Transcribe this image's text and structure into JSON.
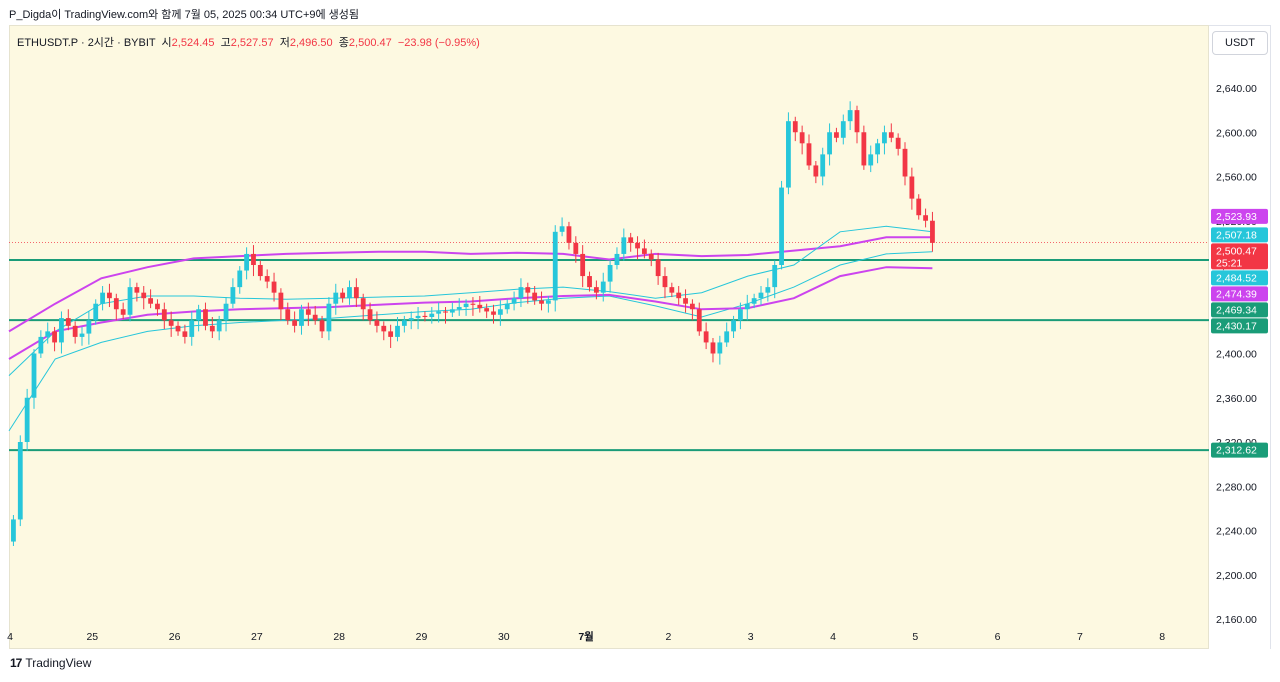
{
  "header": {
    "credit": "P_Digda이 TradingView.com와 함께 7월 05, 2025 00:34 UTC+9에 생성됨"
  },
  "legend": {
    "symbol": "ETHUSDT.P · 2시간 · BYBIT",
    "open_label": "시",
    "open": "2,524.45",
    "high_label": "고",
    "high": "2,527.57",
    "low_label": "저",
    "low": "2,496.50",
    "close_label": "종",
    "close": "2,500.47",
    "change": "−23.98 (−0.95%)"
  },
  "currency_button": "USDT",
  "brand": {
    "logo": "17",
    "name": "TradingView"
  },
  "colors": {
    "up": "#26c6da",
    "down": "#f23645",
    "upper_band": "#cc44ee",
    "inner_band": "#26c6da",
    "hline": "#1a9c78",
    "background": "#fdf9e1"
  },
  "chart_data": {
    "type": "candlestick",
    "ylim": [
      2160,
      2660
    ],
    "y_ticks": [
      "2,160.00",
      "2,200.00",
      "2,240.00",
      "2,280.00",
      "2,320.00",
      "2,360.00",
      "2,400.00",
      "2,440.00",
      "2,480.00",
      "2,520.00",
      "2,560.00",
      "2,600.00",
      "2,640.00"
    ],
    "x_ticks": [
      {
        "label": "4",
        "pos": 0
      },
      {
        "label": "25",
        "pos": 1
      },
      {
        "label": "26",
        "pos": 2
      },
      {
        "label": "27",
        "pos": 3
      },
      {
        "label": "28",
        "pos": 4
      },
      {
        "label": "29",
        "pos": 5
      },
      {
        "label": "30",
        "pos": 6
      },
      {
        "label": "7월",
        "pos": 7,
        "bold": true
      },
      {
        "label": "2",
        "pos": 8
      },
      {
        "label": "3",
        "pos": 9
      },
      {
        "label": "4",
        "pos": 10
      },
      {
        "label": "5",
        "pos": 11
      },
      {
        "label": "6",
        "pos": 12
      },
      {
        "label": "7",
        "pos": 13
      },
      {
        "label": "8",
        "pos": 14
      }
    ],
    "bars_per_day": 12,
    "horizontal_lines": [
      2484.52,
      2430.17,
      2312.62
    ],
    "current_price": 2500.47,
    "countdown": "25:21",
    "price_labels": [
      {
        "text": "2,523.93",
        "value": 2523.93,
        "color": "#cc44ee"
      },
      {
        "text": "2,507.18",
        "value": 2507.18,
        "color": "#26c6da"
      },
      {
        "text": "2,500.47",
        "value": 2500.47,
        "color": "#f23645"
      },
      {
        "text": "2,484.52",
        "value": 2484.52,
        "color": "#26c6da"
      },
      {
        "text": "2,474.39",
        "value": 2474.39,
        "color": "#cc44ee"
      },
      {
        "text": "2,469.34",
        "value": 2469.34,
        "color": "#1a9c78"
      },
      {
        "text": "2,430.17",
        "value": 2430.17,
        "color": "#1a9c78"
      },
      {
        "text": "2,312.62",
        "value": 2312.62,
        "color": "#1a9c78"
      }
    ],
    "closes": [
      2250,
      2320,
      2360,
      2400,
      2415,
      2420,
      2410,
      2432,
      2425,
      2415,
      2418,
      2430,
      2445,
      2455,
      2450,
      2440,
      2435,
      2460,
      2455,
      2450,
      2445,
      2440,
      2430,
      2425,
      2420,
      2415,
      2430,
      2440,
      2425,
      2420,
      2430,
      2445,
      2460,
      2475,
      2490,
      2480,
      2470,
      2465,
      2455,
      2440,
      2430,
      2425,
      2440,
      2435,
      2430,
      2420,
      2445,
      2455,
      2450,
      2460,
      2450,
      2440,
      2430,
      2425,
      2420,
      2415,
      2425,
      2430,
      2432,
      2434,
      2433,
      2436,
      2438,
      2437,
      2440,
      2442,
      2445,
      2444,
      2441,
      2438,
      2435,
      2440,
      2445,
      2450,
      2460,
      2455,
      2448,
      2445,
      2448,
      2510,
      2515,
      2500,
      2490,
      2470,
      2460,
      2455,
      2465,
      2480,
      2490,
      2505,
      2500,
      2495,
      2490,
      2485,
      2470,
      2460,
      2455,
      2450,
      2445,
      2440,
      2420,
      2410,
      2400,
      2410,
      2420,
      2430,
      2440,
      2445,
      2450,
      2455,
      2460,
      2480,
      2550,
      2610,
      2600,
      2590,
      2570,
      2560,
      2580,
      2600,
      2595,
      2610,
      2620,
      2600,
      2570,
      2580,
      2590,
      2600,
      2595,
      2585,
      2560,
      2540,
      2525,
      2520,
      2500
    ],
    "overlays": [
      {
        "name": "upper",
        "values": [
          2420,
          2445,
          2468,
          2478,
          2486,
          2488,
          2490,
          2491,
          2492,
          2492,
          2490,
          2491,
          2490,
          2485,
          2490,
          2488,
          2489,
          2493,
          2497,
          2505,
          2505
        ]
      },
      {
        "name": "inner_upper",
        "values": [
          2380,
          2420,
          2445,
          2452,
          2452,
          2450,
          2449,
          2450,
          2451,
          2452,
          2455,
          2458,
          2460,
          2456,
          2450,
          2455,
          2470,
          2480,
          2510,
          2515,
          2510
        ]
      },
      {
        "name": "inner_lower",
        "values": [
          2330,
          2395,
          2410,
          2420,
          2425,
          2428,
          2430,
          2432,
          2435,
          2438,
          2440,
          2446,
          2450,
          2452,
          2443,
          2433,
          2445,
          2460,
          2480,
          2490,
          2492
        ]
      },
      {
        "name": "lower",
        "values": [
          2395,
          2420,
          2428,
          2435,
          2438,
          2440,
          2441,
          2442,
          2444,
          2446,
          2447,
          2450,
          2452,
          2453,
          2447,
          2440,
          2441,
          2450,
          2470,
          2478,
          2477
        ]
      }
    ]
  }
}
